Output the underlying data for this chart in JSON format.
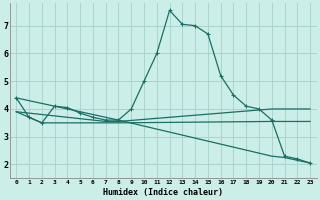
{
  "xlabel": "Humidex (Indice chaleur)",
  "background_color": "#cceee8",
  "grid_color": "#aad4ce",
  "line_color": "#1a6e64",
  "xlim": [
    -0.5,
    23.5
  ],
  "ylim": [
    1.5,
    7.8
  ],
  "xticks": [
    0,
    1,
    2,
    3,
    4,
    5,
    6,
    7,
    8,
    9,
    10,
    11,
    12,
    13,
    14,
    15,
    16,
    17,
    18,
    19,
    20,
    21,
    22,
    23
  ],
  "yticks": [
    2,
    3,
    4,
    5,
    6,
    7
  ],
  "series_main": {
    "x": [
      0,
      1,
      2,
      3,
      4,
      5,
      6,
      7,
      8,
      9,
      10,
      11,
      12,
      13,
      14,
      15,
      16,
      17,
      18,
      19,
      20,
      21,
      22,
      23
    ],
    "y": [
      4.4,
      3.7,
      3.5,
      4.1,
      4.05,
      3.85,
      3.7,
      3.6,
      3.6,
      4.0,
      5.0,
      6.0,
      7.55,
      7.05,
      7.0,
      6.7,
      5.2,
      4.5,
      4.1,
      4.0,
      3.6,
      2.3,
      2.2,
      2.05
    ]
  },
  "series_flat1": {
    "x": [
      0,
      2,
      7,
      8,
      20,
      23
    ],
    "y": [
      3.9,
      3.5,
      3.5,
      3.5,
      3.55,
      3.55
    ]
  },
  "series_flat2": {
    "x": [
      0,
      7,
      8,
      20,
      23
    ],
    "y": [
      3.9,
      3.55,
      3.55,
      4.0,
      4.0
    ]
  },
  "series_diag": {
    "x": [
      0,
      8,
      20,
      21,
      23
    ],
    "y": [
      4.4,
      3.6,
      2.3,
      2.25,
      2.05
    ]
  }
}
